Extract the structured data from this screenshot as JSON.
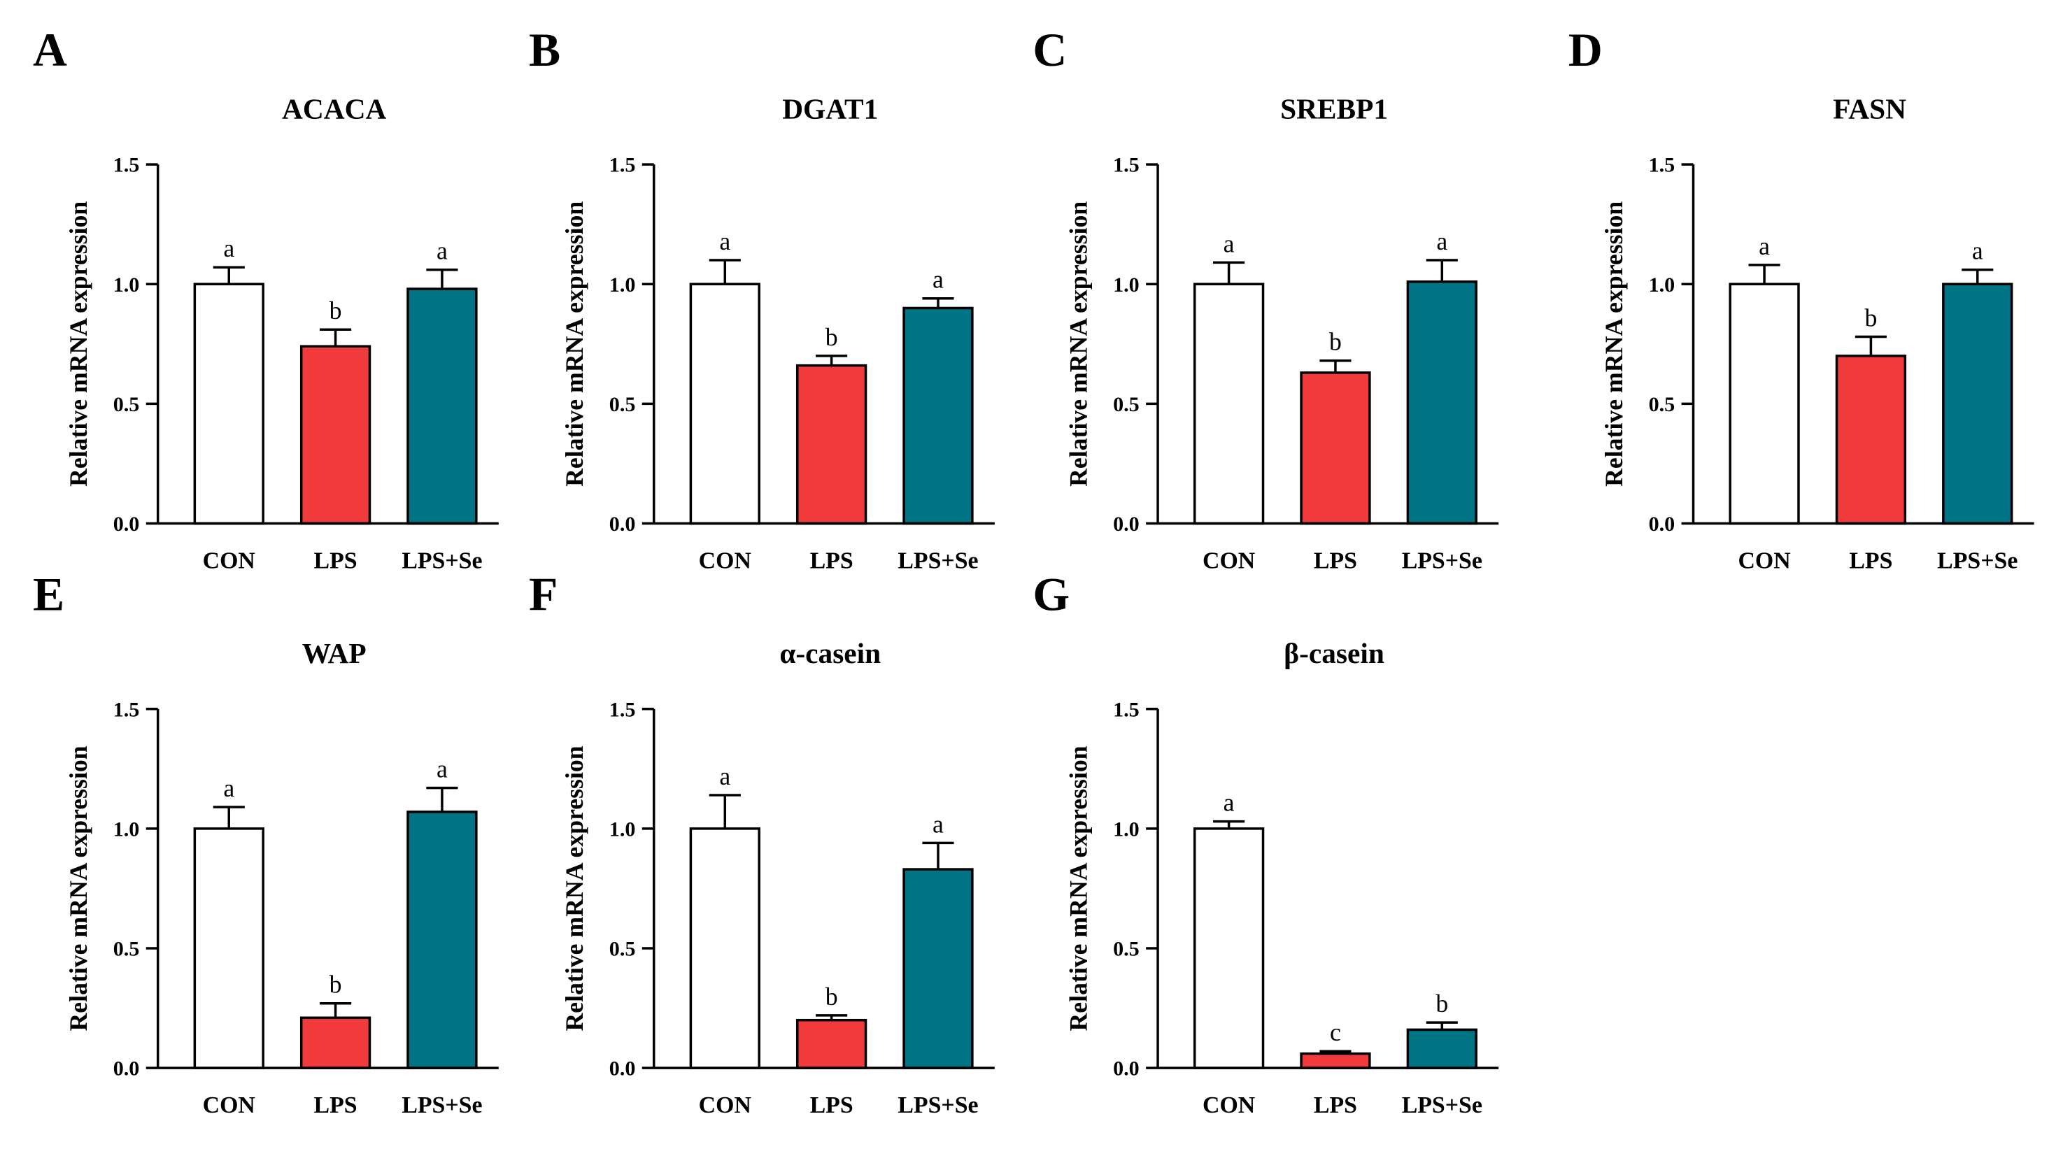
{
  "figure": {
    "colors": {
      "CON": "#ffffff",
      "LPS": "#f03a3c",
      "LPS+Se": "#007485",
      "axis": "#000000"
    }
  },
  "chart_data": [
    {
      "panel": "A",
      "type": "bar",
      "title": "ACACA",
      "ylabel": "Relative mRNA expression",
      "xlabel": "",
      "ylim": [
        0,
        1.5
      ],
      "yticks": [
        "0.0",
        "0.5",
        "1.0",
        "1.5"
      ],
      "categories": [
        "CON",
        "LPS",
        "LPS+Se"
      ],
      "values": [
        1.0,
        0.74,
        0.98
      ],
      "errors": [
        0.07,
        0.07,
        0.08
      ],
      "significance": [
        "a",
        "b",
        "a"
      ]
    },
    {
      "panel": "B",
      "type": "bar",
      "title": "DGAT1",
      "ylabel": "Relative mRNA expression",
      "xlabel": "",
      "ylim": [
        0,
        1.5
      ],
      "yticks": [
        "0.0",
        "0.5",
        "1.0",
        "1.5"
      ],
      "categories": [
        "CON",
        "LPS",
        "LPS+Se"
      ],
      "values": [
        1.0,
        0.66,
        0.9
      ],
      "errors": [
        0.1,
        0.04,
        0.04
      ],
      "significance": [
        "a",
        "b",
        "a"
      ]
    },
    {
      "panel": "C",
      "type": "bar",
      "title": "SREBP1",
      "ylabel": "Relative mRNA expression",
      "xlabel": "",
      "ylim": [
        0,
        1.5
      ],
      "yticks": [
        "0.0",
        "0.5",
        "1.0",
        "1.5"
      ],
      "categories": [
        "CON",
        "LPS",
        "LPS+Se"
      ],
      "values": [
        1.0,
        0.63,
        1.01
      ],
      "errors": [
        0.09,
        0.05,
        0.09
      ],
      "significance": [
        "a",
        "b",
        "a"
      ]
    },
    {
      "panel": "D",
      "type": "bar",
      "title": "FASN",
      "ylabel": "Relative mRNA expression",
      "xlabel": "",
      "ylim": [
        0,
        1.5
      ],
      "yticks": [
        "0.0",
        "0.5",
        "1.0",
        "1.5"
      ],
      "categories": [
        "CON",
        "LPS",
        "LPS+Se"
      ],
      "values": [
        1.0,
        0.7,
        1.0
      ],
      "errors": [
        0.08,
        0.08,
        0.06
      ],
      "significance": [
        "a",
        "b",
        "a"
      ]
    },
    {
      "panel": "E",
      "type": "bar",
      "title": "WAP",
      "ylabel": "Relative mRNA expression",
      "xlabel": "",
      "ylim": [
        0,
        1.5
      ],
      "yticks": [
        "0.0",
        "0.5",
        "1.0",
        "1.5"
      ],
      "categories": [
        "CON",
        "LPS",
        "LPS+Se"
      ],
      "values": [
        1.0,
        0.21,
        1.07
      ],
      "errors": [
        0.09,
        0.06,
        0.1
      ],
      "significance": [
        "a",
        "b",
        "a"
      ]
    },
    {
      "panel": "F",
      "type": "bar",
      "title": "α-casein",
      "ylabel": "Relative mRNA expression",
      "xlabel": "",
      "ylim": [
        0,
        1.5
      ],
      "yticks": [
        "0.0",
        "0.5",
        "1.0",
        "1.5"
      ],
      "categories": [
        "CON",
        "LPS",
        "LPS+Se"
      ],
      "values": [
        1.0,
        0.2,
        0.83
      ],
      "errors": [
        0.14,
        0.02,
        0.11
      ],
      "significance": [
        "a",
        "b",
        "a"
      ]
    },
    {
      "panel": "G",
      "type": "bar",
      "title": "β-casein",
      "ylabel": "Relative mRNA expression",
      "xlabel": "",
      "ylim": [
        0,
        1.5
      ],
      "yticks": [
        "0.0",
        "0.5",
        "1.0",
        "1.5"
      ],
      "categories": [
        "CON",
        "LPS",
        "LPS+Se"
      ],
      "values": [
        1.0,
        0.06,
        0.16
      ],
      "errors": [
        0.03,
        0.01,
        0.03
      ],
      "significance": [
        "a",
        "c",
        "b"
      ]
    }
  ]
}
